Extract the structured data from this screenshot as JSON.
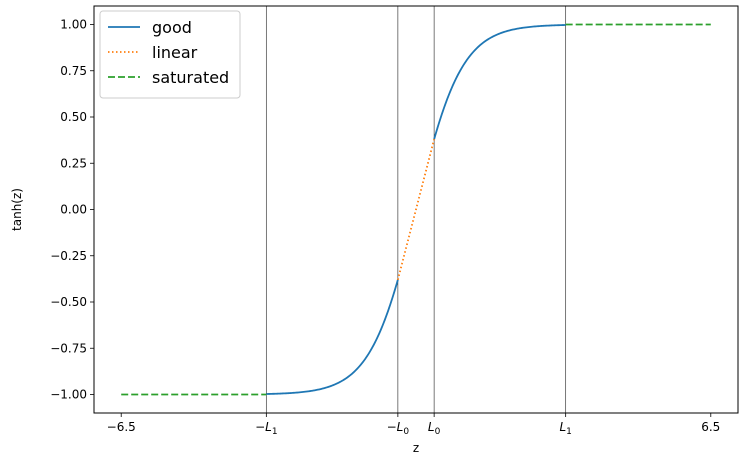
{
  "chart_data": {
    "type": "line",
    "function": "tanh(z)",
    "xlabel": "z",
    "ylabel": "tanh(z)",
    "xlim": [
      -7.1,
      7.1
    ],
    "ylim": [
      -1.1,
      1.1
    ],
    "grid": false,
    "legend_position": "upper-left",
    "constants": {
      "L1": 3.3,
      "L0": 0.4
    },
    "x_ticks": [
      {
        "value": -6.5,
        "label": "−6.5"
      },
      {
        "value": -3.3,
        "label": "−L",
        "sub": "1"
      },
      {
        "value": -0.4,
        "label": "−L",
        "sub": "0"
      },
      {
        "value": 0.4,
        "label": "L",
        "sub": "0"
      },
      {
        "value": 3.3,
        "label": "L",
        "sub": "1"
      },
      {
        "value": 6.5,
        "label": "6.5"
      }
    ],
    "y_ticks": [
      {
        "value": 1.0,
        "label": "1.00"
      },
      {
        "value": 0.75,
        "label": "0.75"
      },
      {
        "value": 0.5,
        "label": "0.50"
      },
      {
        "value": 0.25,
        "label": "0.25"
      },
      {
        "value": 0.0,
        "label": "0.00"
      },
      {
        "value": -0.25,
        "label": "−0.25"
      },
      {
        "value": -0.5,
        "label": "−0.50"
      },
      {
        "value": -0.75,
        "label": "−0.75"
      },
      {
        "value": -1.0,
        "label": "−1.00"
      }
    ],
    "vlines": [
      -3.3,
      -0.4,
      0.4,
      3.3
    ],
    "series": [
      {
        "name": "good",
        "style": "solid",
        "color": "#1f77b4",
        "segments": [
          [
            -3.3,
            -0.4
          ],
          [
            0.4,
            3.3
          ]
        ],
        "formula": "tanh"
      },
      {
        "name": "linear",
        "style": "dotted",
        "color": "#ff7f0e",
        "segments": [
          [
            -0.4,
            0.4
          ]
        ],
        "formula": "linear"
      },
      {
        "name": "saturated",
        "style": "dashed",
        "color": "#2ca02c",
        "segments": [
          [
            -6.5,
            -3.3
          ],
          [
            3.3,
            6.5
          ]
        ],
        "formula": "sign"
      }
    ]
  }
}
